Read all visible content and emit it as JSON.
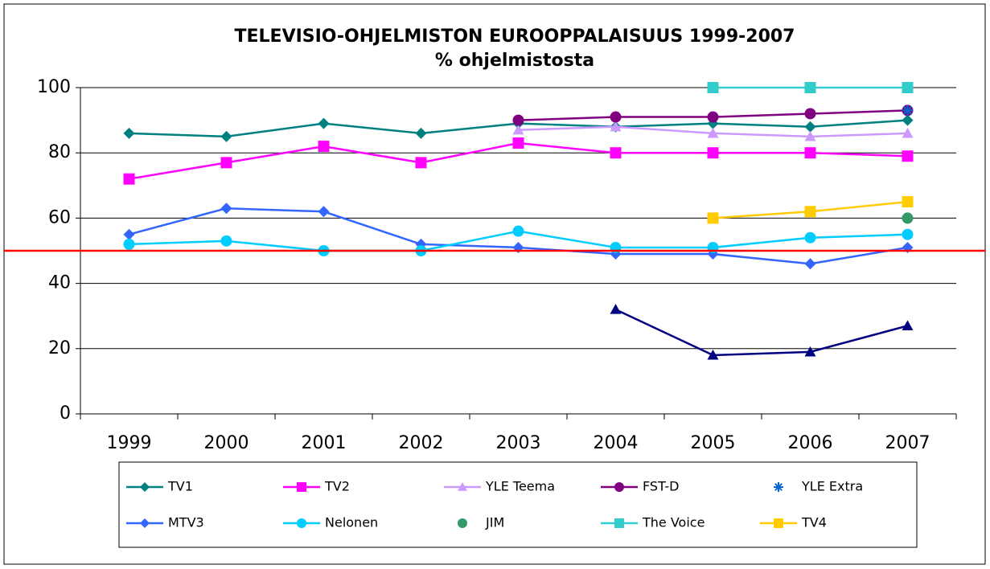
{
  "chart_data": {
    "type": "line",
    "title": "TELEVISIO-OHJELMISTON EUROOPPALAISUUS 1999-2007",
    "subtitle": "% ohjelmistosta",
    "categories": [
      "1999",
      "2000",
      "2001",
      "2002",
      "2003",
      "2004",
      "2005",
      "2006",
      "2007"
    ],
    "ylim": [
      0,
      100
    ],
    "yticks": [
      0,
      20,
      40,
      60,
      80,
      100
    ],
    "grid": true,
    "reference_line": {
      "value": 50,
      "color": "#ff0000"
    },
    "series": [
      {
        "name": "TV1",
        "color": "#008080",
        "marker": "diamond",
        "line": true,
        "values": [
          86,
          85,
          89,
          86,
          89,
          88,
          89,
          88,
          90
        ]
      },
      {
        "name": "TV2",
        "color": "#ff00ff",
        "marker": "square",
        "line": true,
        "values": [
          72,
          77,
          82,
          77,
          83,
          80,
          80,
          80,
          79
        ]
      },
      {
        "name": "YLE Teema",
        "color": "#cc99ff",
        "marker": "triangle",
        "line": true,
        "values": [
          null,
          null,
          null,
          null,
          87,
          88,
          86,
          85,
          86
        ]
      },
      {
        "name": "FST-D",
        "color": "#800080",
        "marker": "circle",
        "line": true,
        "values": [
          null,
          null,
          null,
          null,
          90,
          91,
          91,
          92,
          93
        ]
      },
      {
        "name": "YLE Extra",
        "color": "#0066cc",
        "marker": "asterisk",
        "line": false,
        "values": [
          null,
          null,
          null,
          null,
          null,
          null,
          null,
          null,
          93
        ]
      },
      {
        "name": "MTV3",
        "color": "#3366ff",
        "marker": "diamond",
        "line": true,
        "values": [
          55,
          63,
          62,
          52,
          51,
          49,
          49,
          46,
          51
        ]
      },
      {
        "name": "Nelonen",
        "color": "#00ccff",
        "marker": "circle",
        "line": true,
        "values": [
          52,
          53,
          50,
          50,
          56,
          51,
          51,
          54,
          55
        ]
      },
      {
        "name": "JIM",
        "color": "#339966",
        "marker": "circle",
        "line": false,
        "values": [
          null,
          null,
          null,
          null,
          null,
          null,
          null,
          null,
          60
        ]
      },
      {
        "name": "The Voice",
        "color": "#33cccc",
        "marker": "square",
        "line": true,
        "values": [
          null,
          null,
          null,
          null,
          null,
          null,
          100,
          100,
          100
        ]
      },
      {
        "name": "TV4",
        "color": "#ffcc00",
        "marker": "square",
        "line": true,
        "values": [
          null,
          null,
          null,
          null,
          null,
          null,
          60,
          62,
          65
        ]
      },
      {
        "color": "#000080",
        "marker": "triangle",
        "line": true,
        "values": [
          null,
          null,
          null,
          null,
          null,
          32,
          18,
          19,
          27
        ]
      }
    ]
  }
}
